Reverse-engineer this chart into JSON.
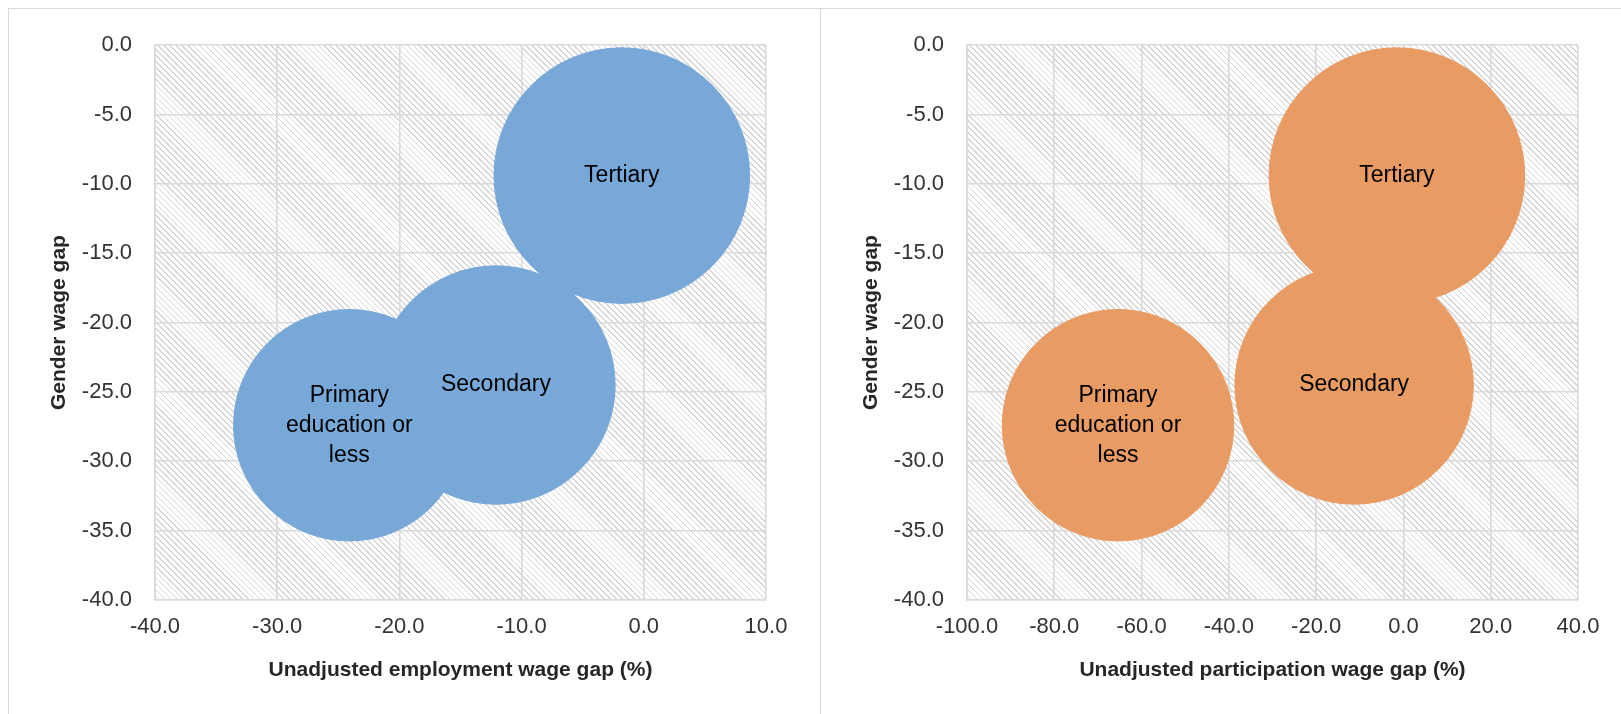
{
  "chart_data": [
    {
      "type": "bubble",
      "xlabel": "Unadjusted employment wage gap (%)",
      "ylabel": "Gender wage gap",
      "xlim": [
        -40,
        10
      ],
      "ylim": [
        -40,
        0
      ],
      "xticks": [
        {
          "value": -40,
          "label": "-40.0"
        },
        {
          "value": -30,
          "label": "-30.0"
        },
        {
          "value": -20,
          "label": "-20.0"
        },
        {
          "value": -10,
          "label": "-10.0"
        },
        {
          "value": 0,
          "label": "0.0"
        },
        {
          "value": 10,
          "label": "10.0"
        }
      ],
      "yticks": [
        {
          "value": 0,
          "label": "0.0"
        },
        {
          "value": -5,
          "label": "-5.0"
        },
        {
          "value": -10,
          "label": "-10.0"
        },
        {
          "value": -15,
          "label": "-15.0"
        },
        {
          "value": -20,
          "label": "-20.0"
        },
        {
          "value": -25,
          "label": "-25.0"
        },
        {
          "value": -30,
          "label": "-30.0"
        },
        {
          "value": -35,
          "label": "-35.0"
        },
        {
          "value": -40,
          "label": "-40.0"
        }
      ],
      "grid": true,
      "series": [
        {
          "name": "Primary education or less",
          "color": "#78a8d8",
          "x": [
            -24.1
          ],
          "values": [
            -27.4
          ],
          "sizes": [
            0.82
          ]
        },
        {
          "name": "Secondary",
          "color": "#78a8d8",
          "x": [
            -12.1
          ],
          "values": [
            -24.5
          ],
          "sizes": [
            0.87
          ]
        },
        {
          "name": "Tertiary",
          "color": "#78a8d8",
          "x": [
            -1.8
          ],
          "values": [
            -9.4
          ],
          "sizes": [
            1
          ]
        }
      ]
    },
    {
      "type": "bubble",
      "xlabel": "Unadjusted participation wage gap (%)",
      "ylabel": "Gender wage gap",
      "xlim": [
        -100,
        40
      ],
      "ylim": [
        -40,
        0
      ],
      "xticks": [
        {
          "value": -100,
          "label": "-100.0"
        },
        {
          "value": -80,
          "label": "-80.0"
        },
        {
          "value": -60,
          "label": "-60.0"
        },
        {
          "value": -40,
          "label": "-40.0"
        },
        {
          "value": -20,
          "label": "-20.0"
        },
        {
          "value": 0,
          "label": "0.0"
        },
        {
          "value": 20,
          "label": "20.0"
        },
        {
          "value": 40,
          "label": "40.0"
        }
      ],
      "yticks": [
        {
          "value": 0,
          "label": "0.0"
        },
        {
          "value": -5,
          "label": "-5.0"
        },
        {
          "value": -10,
          "label": "-10.0"
        },
        {
          "value": -15,
          "label": "-15.0"
        },
        {
          "value": -20,
          "label": "-20.0"
        },
        {
          "value": -25,
          "label": "-25.0"
        },
        {
          "value": -30,
          "label": "-30.0"
        },
        {
          "value": -35,
          "label": "-35.0"
        },
        {
          "value": -40,
          "label": "-40.0"
        }
      ],
      "grid": true,
      "series": [
        {
          "name": "Primary education or less",
          "color": "#e99b64",
          "x": [
            -65.4
          ],
          "values": [
            -27.4
          ],
          "sizes": [
            0.82
          ]
        },
        {
          "name": "Secondary",
          "color": "#e99b64",
          "x": [
            -11.3
          ],
          "values": [
            -24.5
          ],
          "sizes": [
            0.87
          ]
        },
        {
          "name": "Tertiary",
          "color": "#e99b64",
          "x": [
            -1.5
          ],
          "values": [
            -9.4
          ],
          "sizes": [
            1
          ]
        }
      ]
    }
  ]
}
